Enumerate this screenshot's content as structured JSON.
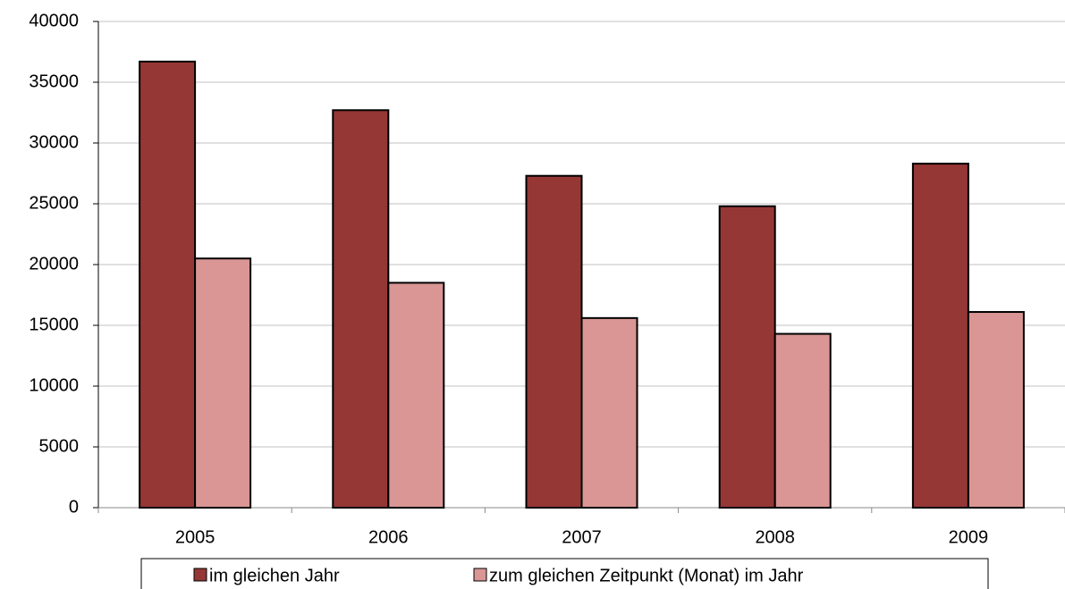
{
  "chart_data": {
    "type": "bar",
    "categories": [
      "2005",
      "2006",
      "2007",
      "2008",
      "2009"
    ],
    "series": [
      {
        "name": "im gleichen Jahr",
        "color": "#953735",
        "values": [
          36700,
          32700,
          27300,
          24800,
          28300
        ]
      },
      {
        "name": "zum gleichen Zeitpunkt (Monat) im Jahr",
        "color": "#d99694",
        "values": [
          20500,
          18500,
          15600,
          14300,
          16100
        ]
      }
    ],
    "ylim": [
      0,
      40000
    ],
    "yticks": [
      0,
      5000,
      10000,
      15000,
      20000,
      25000,
      30000,
      35000,
      40000
    ],
    "grid": true
  }
}
